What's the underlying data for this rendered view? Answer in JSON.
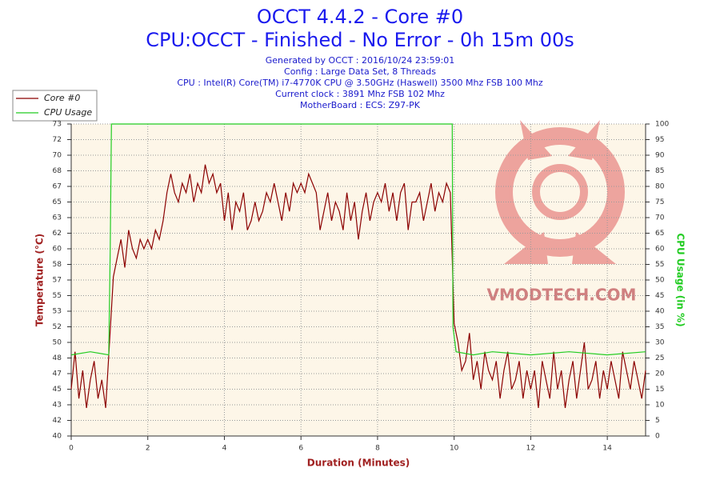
{
  "chart_data": {
    "type": "line",
    "title": "OCCT 4.4.2 - Core #0",
    "subtitle": "CPU:OCCT - Finished - No Error - 0h 15m 00s",
    "info": [
      "Generated by OCCT : 2016/10/24 23:59:01",
      "Config : Large Data Set, 8 Threads",
      "CPU : Intel(R) Core(TM) i7-4770K CPU @ 3.50GHz (Haswell) 3500 Mhz FSB 100 Mhz",
      "Current clock : 3891 Mhz FSB 102 Mhz",
      "MotherBoard : ECS: Z97-PK"
    ],
    "watermark": "VMODTECH.COM",
    "x_label": "Duration (Minutes)",
    "y_label": "Temperature (°C)",
    "y2_label": "CPU Usage (in %)",
    "xlim": [
      0,
      15
    ],
    "xticks": [
      0,
      2,
      4,
      6,
      8,
      10,
      12,
      14
    ],
    "ylim": [
      40,
      73.333
    ],
    "yticks": [
      40,
      {
        "value": 41.667,
        "label": "42"
      },
      {
        "value": 43.333,
        "label": "43"
      },
      45,
      {
        "value": 46.667,
        "label": "47"
      },
      {
        "value": 48.333,
        "label": "48"
      },
      50,
      {
        "value": 51.667,
        "label": "52"
      },
      {
        "value": 53.333,
        "label": "53"
      },
      55,
      {
        "value": 56.667,
        "label": "57"
      },
      {
        "value": 58.333,
        "label": "58"
      },
      60,
      {
        "value": 61.667,
        "label": "62"
      },
      {
        "value": 63.333,
        "label": "63"
      },
      65,
      {
        "value": 66.667,
        "label": "67"
      },
      {
        "value": 68.333,
        "label": "68"
      },
      70,
      {
        "value": 71.667,
        "label": "72"
      },
      {
        "value": 73.333,
        "label": "73"
      }
    ],
    "y2lim": [
      0,
      100
    ],
    "y2ticks": [
      0,
      5,
      10,
      15,
      20,
      25,
      30,
      35,
      40,
      45,
      50,
      55,
      60,
      65,
      70,
      75,
      80,
      85,
      90,
      95,
      100
    ],
    "grid": true,
    "legend": "top-left",
    "series": [
      {
        "name": "Core #0",
        "color": "#8b0000",
        "x": [
          0,
          0.1,
          0.2,
          0.3,
          0.4,
          0.5,
          0.6,
          0.7,
          0.8,
          0.9,
          1,
          1.1,
          1.2,
          1.3,
          1.4,
          1.5,
          1.6,
          1.7,
          1.8,
          1.9,
          2,
          2.1,
          2.2,
          2.3,
          2.4,
          2.5,
          2.6,
          2.7,
          2.8,
          2.9,
          3,
          3.1,
          3.2,
          3.3,
          3.4,
          3.5,
          3.6,
          3.7,
          3.8,
          3.9,
          4,
          4.1,
          4.2,
          4.3,
          4.4,
          4.5,
          4.6,
          4.7,
          4.8,
          4.9,
          5,
          5.1,
          5.2,
          5.3,
          5.4,
          5.5,
          5.6,
          5.7,
          5.8,
          5.9,
          6,
          6.1,
          6.2,
          6.3,
          6.4,
          6.5,
          6.6,
          6.7,
          6.8,
          6.9,
          7,
          7.1,
          7.2,
          7.3,
          7.4,
          7.5,
          7.6,
          7.7,
          7.8,
          7.9,
          8,
          8.1,
          8.2,
          8.3,
          8.4,
          8.5,
          8.6,
          8.7,
          8.8,
          8.9,
          9,
          9.1,
          9.2,
          9.3,
          9.4,
          9.5,
          9.6,
          9.7,
          9.8,
          9.9,
          10,
          10.1,
          10.2,
          10.3,
          10.4,
          10.5,
          10.6,
          10.7,
          10.8,
          10.9,
          11,
          11.1,
          11.2,
          11.3,
          11.4,
          11.5,
          11.6,
          11.7,
          11.8,
          11.9,
          12,
          12.1,
          12.2,
          12.3,
          12.4,
          12.5,
          12.6,
          12.7,
          12.8,
          12.9,
          13,
          13.1,
          13.2,
          13.3,
          13.4,
          13.5,
          13.6,
          13.7,
          13.8,
          13.9,
          14,
          14.1,
          14.2,
          14.3,
          14.4,
          14.5,
          14.6,
          14.7,
          14.8,
          14.9,
          15
        ],
        "values": [
          45,
          49,
          44,
          47,
          43,
          46,
          48,
          44,
          46,
          43,
          50,
          57,
          59,
          61,
          58,
          62,
          60,
          59,
          61,
          60,
          61,
          60,
          62,
          61,
          63,
          66,
          68,
          66,
          65,
          67,
          66,
          68,
          65,
          67,
          66,
          69,
          67,
          68,
          66,
          67,
          63,
          66,
          62,
          65,
          64,
          66,
          62,
          63,
          65,
          63,
          64,
          66,
          65,
          67,
          65,
          63,
          66,
          64,
          67,
          66,
          67,
          66,
          68,
          67,
          66,
          62,
          64,
          66,
          63,
          65,
          64,
          62,
          66,
          63,
          65,
          61,
          64,
          66,
          63,
          65,
          66,
          65,
          67,
          64,
          66,
          63,
          66,
          67,
          62,
          65,
          65,
          66,
          63,
          65,
          67,
          64,
          66,
          65,
          67,
          66,
          52,
          50,
          47,
          48,
          51,
          46,
          48,
          45,
          49,
          47,
          46,
          48,
          44,
          47,
          49,
          45,
          46,
          48,
          44,
          47,
          45,
          47,
          43,
          48,
          46,
          44,
          49,
          45,
          47,
          43,
          46,
          48,
          44,
          47,
          50,
          45,
          46,
          48,
          44,
          47,
          45,
          48,
          46,
          44,
          49,
          47,
          45,
          48,
          46,
          44,
          47
        ]
      },
      {
        "name": "CPU Usage",
        "color": "#22cc22",
        "axis": "y2",
        "x": [
          0,
          0.5,
          0.98,
          1.02,
          1.05,
          9.95,
          9.97,
          10.05,
          10.5,
          11,
          12,
          13,
          14,
          15
        ],
        "values": [
          26,
          27,
          26,
          60,
          100,
          100,
          35,
          27,
          26,
          27,
          26,
          27,
          26,
          27
        ]
      }
    ]
  }
}
